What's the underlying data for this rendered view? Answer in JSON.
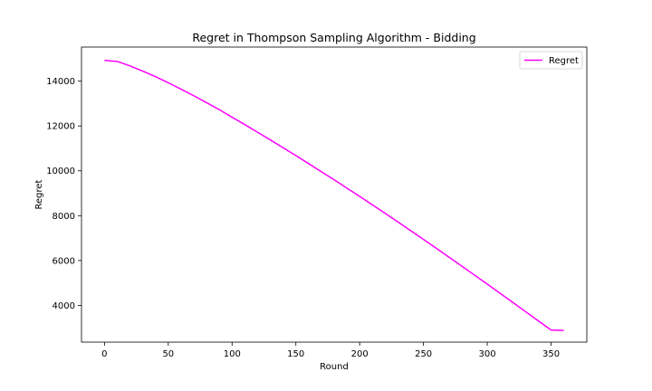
{
  "chart_data": {
    "type": "line",
    "title": "Regret in Thompson Sampling Algorithm - Bidding",
    "xlabel": "Round",
    "ylabel": "Regret",
    "xlim": [
      -18,
      378
    ],
    "ylim": [
      2360,
      15520
    ],
    "x_ticks": [
      0,
      50,
      100,
      150,
      200,
      250,
      300,
      350
    ],
    "y_ticks": [
      4000,
      6000,
      8000,
      10000,
      12000,
      14000
    ],
    "grid": false,
    "legend_position": "top-right",
    "series": [
      {
        "name": "Regret",
        "color": "#ff00ff",
        "x": [
          0,
          5,
          10,
          15,
          20,
          30,
          40,
          50,
          60,
          70,
          80,
          90,
          100,
          110,
          120,
          130,
          140,
          150,
          160,
          170,
          180,
          190,
          200,
          210,
          220,
          230,
          240,
          250,
          260,
          270,
          280,
          290,
          300,
          310,
          320,
          330,
          340,
          350,
          360
        ],
        "y": [
          14930,
          14900,
          14880,
          14780,
          14680,
          14450,
          14200,
          13930,
          13640,
          13350,
          13040,
          12730,
          12390,
          12060,
          11720,
          11380,
          11030,
          10680,
          10320,
          9960,
          9600,
          9230,
          8860,
          8480,
          8100,
          7720,
          7330,
          6940,
          6550,
          6150,
          5750,
          5350,
          4950,
          4540,
          4130,
          3720,
          3310,
          2900,
          2880
        ]
      }
    ]
  }
}
